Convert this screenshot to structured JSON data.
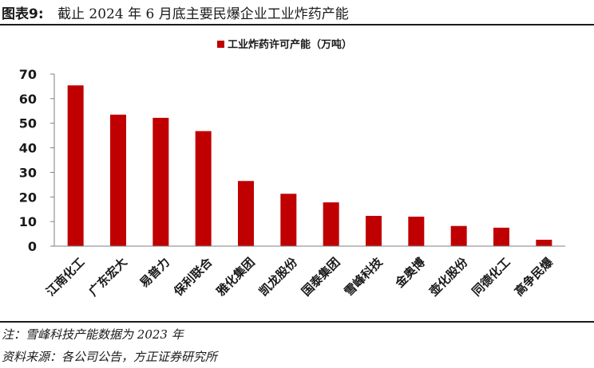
{
  "figure": {
    "label": "图表9:",
    "title": "截止 2024 年 6 月底主要民爆企业工业炸药产能"
  },
  "colors": {
    "bar": "#c00000",
    "axis": "#7f7f7f",
    "text": "#1a1a1a"
  },
  "chart_data": {
    "type": "bar",
    "categories": [
      "江南化工",
      "广东宏大",
      "易普力",
      "保利联合",
      "雅化集团",
      "凯龙股份",
      "国泰集团",
      "雪峰科技",
      "金奥博",
      "壶化股份",
      "同德化工",
      "高争民爆"
    ],
    "series": [
      {
        "name": "工业炸药许可产能（万吨）",
        "values": [
          65.4,
          53.5,
          52.2,
          46.8,
          26.5,
          21.3,
          17.8,
          12.3,
          12.0,
          8.2,
          7.5,
          2.6
        ]
      }
    ],
    "ylim": [
      0,
      70
    ],
    "yticks": [
      0,
      10,
      20,
      30,
      40,
      50,
      60,
      70
    ],
    "grid": false,
    "legend": "top-center"
  },
  "notes": {
    "note": "注：雪峰科技产能数据为 2023 年",
    "source": "资料来源：各公司公告，方正证券研究所"
  }
}
